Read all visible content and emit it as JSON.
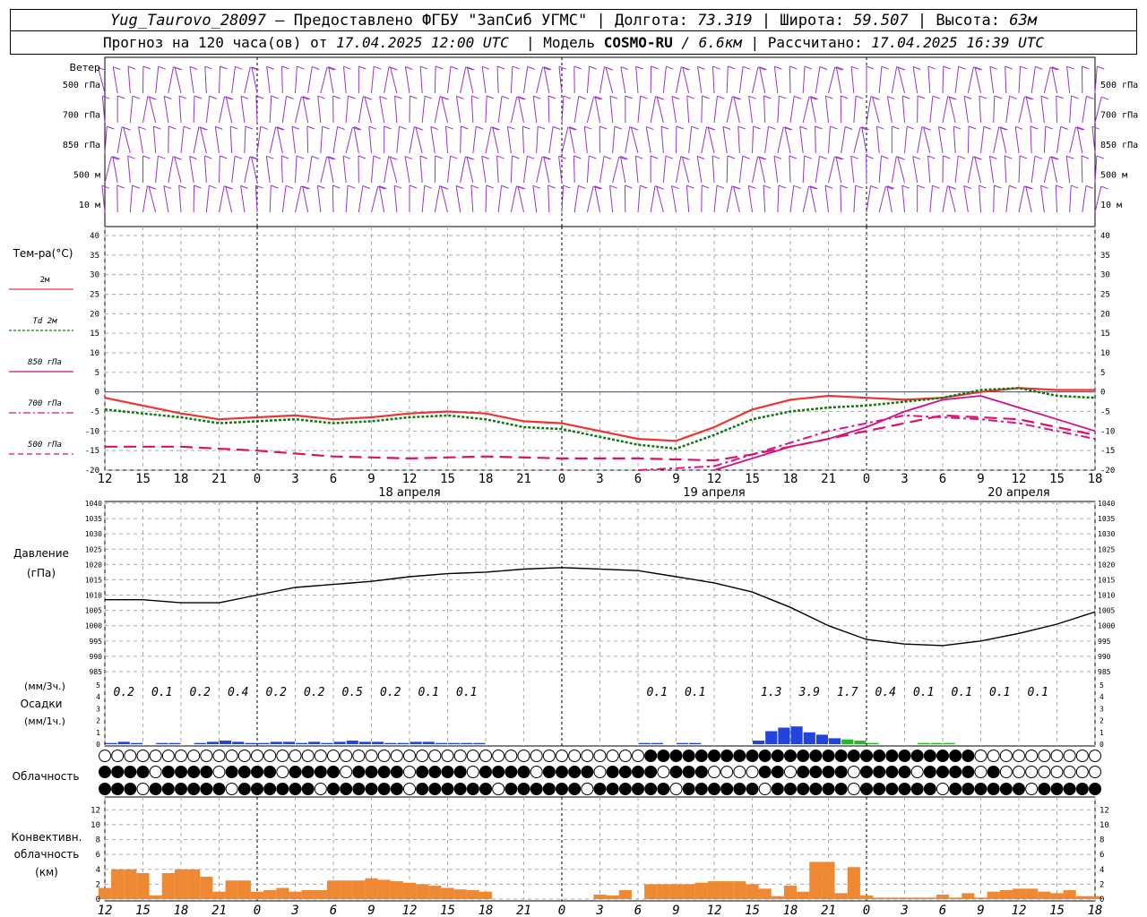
{
  "header": {
    "station": "Yug_Taurovo_28097",
    "provider": "– Предоставлено ФГБУ \"ЗапСиб УГМС\"",
    "lon_label": "| Долгота:",
    "lon_value": "73.319",
    "lat_label": "| Широта:",
    "lat_value": "59.507",
    "alt_label": "| Высота:",
    "alt_value": "63м",
    "forecast_label": "Прогноз на 120 часа(ов) от",
    "forecast_start": "17.04.2025 12:00 UTC",
    "model_label": "| Модель",
    "model_name": "COSMO-RU",
    "model_res": "/ 6.6км",
    "calc_label": "| Рассчитано:",
    "calc_time": "17.04.2025 16:39 UTC"
  },
  "colors": {
    "wind": "#9933cc",
    "t2m": "#ee3333",
    "td2m": "#117711",
    "t850": "#cc1188",
    "t700": "#dd1188",
    "t500": "#dd1166",
    "pressure": "#000000",
    "precip_rain": "#2244dd",
    "precip_mixed": "#22bb22",
    "convective": "#ee8833",
    "zero_line": "#3344cc"
  },
  "wind_panel": {
    "title": "Ветер",
    "levels": [
      "500 гПа",
      "700 гПа",
      "850 гПа",
      "500 м",
      "10 м"
    ]
  },
  "time_axis": {
    "hour_labels": [
      "12",
      "15",
      "18",
      "21",
      "0",
      "3",
      "6",
      "9",
      "12",
      "15",
      "18",
      "21",
      "0",
      "3",
      "6",
      "9",
      "12",
      "15",
      "18",
      "21",
      "0",
      "3",
      "6",
      "9",
      "12",
      "15",
      "18"
    ],
    "date_labels": [
      "18 апреля",
      "19 апреля",
      "20 апреля"
    ]
  },
  "temp_panel": {
    "title": "Тем-ра(°C)",
    "legend": [
      {
        "key": "2м",
        "label": "2м",
        "prefix": ""
      },
      {
        "key": "td",
        "label": "2м",
        "prefix": "Td"
      },
      {
        "key": "850",
        "label": "гПа",
        "prefix": "850"
      },
      {
        "key": "700",
        "label": "гПа",
        "prefix": "700"
      },
      {
        "key": "500",
        "label": "гПа",
        "prefix": "500"
      }
    ],
    "y_ticks": [
      "40",
      "35",
      "30",
      "25",
      "20",
      "15",
      "10",
      "5",
      "0",
      "-5",
      "-10",
      "-15",
      "-20"
    ]
  },
  "pressure_panel": {
    "title_1": "Давление",
    "title_2": "(гПа)",
    "y_ticks": [
      "1040",
      "1035",
      "1030",
      "1025",
      "1020",
      "1015",
      "1010",
      "1005",
      "1000",
      "995",
      "990",
      "985"
    ]
  },
  "precip_panel": {
    "title_1": "(мм/3ч.)",
    "title_2": "Осадки",
    "title_3": "(мм/1ч.)",
    "y_ticks": [
      "5",
      "4",
      "3",
      "2",
      "1",
      "0"
    ],
    "totals_3h": [
      {
        "t": 1.5,
        "v": "0.2"
      },
      {
        "t": 4.5,
        "v": "0.1"
      },
      {
        "t": 7.5,
        "v": "0.2"
      },
      {
        "t": 10.5,
        "v": "0.4"
      },
      {
        "t": 13.5,
        "v": "0.2"
      },
      {
        "t": 16.5,
        "v": "0.2"
      },
      {
        "t": 19.5,
        "v": "0.5"
      },
      {
        "t": 22.5,
        "v": "0.2"
      },
      {
        "t": 25.5,
        "v": "0.1"
      },
      {
        "t": 28.5,
        "v": "0.1"
      },
      {
        "t": 43.5,
        "v": "0.1"
      },
      {
        "t": 46.5,
        "v": "0.1"
      },
      {
        "t": 52.5,
        "v": "1.3"
      },
      {
        "t": 55.5,
        "v": "3.9"
      },
      {
        "t": 58.5,
        "v": "1.7"
      },
      {
        "t": 61.5,
        "v": "0.4"
      },
      {
        "t": 64.5,
        "v": "0.1"
      },
      {
        "t": 67.5,
        "v": "0.1"
      },
      {
        "t": 70.5,
        "v": "0.1"
      },
      {
        "t": 73.5,
        "v": "0.1"
      }
    ]
  },
  "cloud_panel": {
    "title": "Облачность"
  },
  "conv_panel": {
    "title_1": "Конвективн.",
    "title_2": "облачность",
    "title_3": "(км)",
    "y_ticks": [
      "12",
      "10",
      "8",
      "6",
      "4",
      "2",
      "0"
    ]
  },
  "chart_data": [
    {
      "type": "line",
      "title": "Тем-ра(°C)",
      "x_unit": "hours from 17.04.2025 12:00 UTC",
      "ylim": [
        -20,
        40
      ],
      "series": [
        {
          "name": "2м",
          "x": [
            0,
            3,
            6,
            9,
            12,
            15,
            18,
            21,
            24,
            27,
            30,
            33,
            36,
            42,
            45,
            48,
            51,
            54,
            57,
            60,
            63,
            66,
            69,
            72,
            75,
            78
          ],
          "values": [
            -1.5,
            -3.5,
            -5.5,
            -7,
            -6.5,
            -6,
            -7,
            -6.5,
            -5.5,
            -5,
            -5.5,
            -7.5,
            -8,
            -12,
            -12.5,
            -9,
            -4.5,
            -2,
            -1,
            -1.5,
            -2,
            -1.5,
            0,
            1,
            0.5,
            0.5
          ]
        },
        {
          "name": "Td 2м",
          "x": [
            0,
            3,
            6,
            9,
            12,
            15,
            18,
            21,
            24,
            27,
            30,
            33,
            36,
            42,
            45,
            48,
            51,
            54,
            57,
            60,
            63,
            66,
            69,
            72,
            75,
            78
          ],
          "values": [
            -4.5,
            -5.5,
            -6.5,
            -8,
            -7.5,
            -7,
            -8,
            -7.5,
            -6.5,
            -6,
            -7,
            -9,
            -9.5,
            -13.5,
            -14.5,
            -11,
            -7,
            -5,
            -4,
            -3.5,
            -2.5,
            -1.5,
            0.5,
            1,
            -1,
            -1.5
          ]
        },
        {
          "name": "850 гПа",
          "x": [
            48,
            51,
            54,
            57,
            60,
            63,
            66,
            69,
            72,
            75,
            78
          ],
          "values": [
            -20,
            -17,
            -14,
            -12,
            -9,
            -5,
            -2,
            -1,
            -4,
            -7,
            -10
          ]
        },
        {
          "name": "700 гПа",
          "x": [
            42,
            48,
            51,
            54,
            57,
            60,
            63,
            66,
            69,
            72,
            75,
            78
          ],
          "values": [
            -20,
            -19,
            -16,
            -13,
            -10,
            -8,
            -6,
            -6.5,
            -7,
            -8,
            -10,
            -12
          ]
        },
        {
          "name": "500 гПа",
          "x": [
            0,
            6,
            12,
            18,
            24,
            30,
            36,
            42,
            48,
            51,
            54,
            57,
            60,
            63,
            66,
            69,
            72,
            75,
            78
          ],
          "values": [
            -14,
            -14,
            -15,
            -16.5,
            -17,
            -16.5,
            -17,
            -17,
            -17.5,
            -16,
            -14,
            -12,
            -10,
            -8,
            -6,
            -6.5,
            -7,
            -9,
            -11
          ]
        }
      ]
    },
    {
      "type": "line",
      "title": "Давление (гПа)",
      "ylim": [
        985,
        1040
      ],
      "series": [
        {
          "name": "Давление",
          "x": [
            0,
            3,
            6,
            9,
            12,
            15,
            18,
            21,
            24,
            27,
            30,
            33,
            36,
            42,
            45,
            48,
            51,
            54,
            57,
            60,
            63,
            66,
            69,
            72,
            75,
            78
          ],
          "values": [
            1008.5,
            1008.5,
            1007.5,
            1007.5,
            1010,
            1012.5,
            1013.5,
            1014.5,
            1016,
            1017,
            1017.5,
            1018.5,
            1019,
            1018,
            1016,
            1014,
            1011,
            1006,
            1000,
            995.5,
            994,
            993.5,
            995,
            997.5,
            1000.5,
            1004.5
          ]
        }
      ]
    },
    {
      "type": "bar",
      "title": "Осадки (мм/1ч.)",
      "ylim": [
        0,
        5
      ],
      "series": [
        {
          "name": "rain",
          "x": [
            1,
            2,
            3,
            5,
            6,
            8,
            9,
            10,
            11,
            12,
            13,
            14,
            15,
            16,
            17,
            18,
            19,
            20,
            21,
            22,
            23,
            24,
            25,
            26,
            27,
            28,
            29,
            30,
            43,
            44,
            46,
            47,
            52,
            53,
            54,
            55,
            56,
            57,
            58
          ],
          "values": [
            0.1,
            0.2,
            0.1,
            0.1,
            0.1,
            0.1,
            0.2,
            0.3,
            0.2,
            0.1,
            0.1,
            0.2,
            0.2,
            0.1,
            0.2,
            0.1,
            0.2,
            0.3,
            0.2,
            0.2,
            0.1,
            0.1,
            0.2,
            0.2,
            0.1,
            0.1,
            0.1,
            0.1,
            0.1,
            0.1,
            0.1,
            0.1,
            0.3,
            1.1,
            1.4,
            1.5,
            1.0,
            0.8,
            0.5
          ]
        },
        {
          "name": "mixed",
          "x": [
            59,
            60,
            61,
            65,
            66,
            67
          ],
          "values": [
            0.4,
            0.3,
            0.1,
            0.1,
            0.1,
            0.1
          ]
        }
      ]
    },
    {
      "type": "bar",
      "title": "Конвективн. облачность (км)",
      "ylim": [
        0,
        13
      ],
      "series": [
        {
          "name": "convective",
          "x": [
            0,
            1,
            2,
            3,
            4,
            5,
            6,
            7,
            8,
            9,
            10,
            11,
            12,
            13,
            14,
            15,
            16,
            17,
            18,
            19,
            20,
            21,
            22,
            23,
            24,
            25,
            26,
            27,
            28,
            29,
            30,
            39,
            40,
            41,
            43,
            44,
            45,
            46,
            47,
            48,
            49,
            50,
            51,
            52,
            53,
            54,
            55,
            56,
            57,
            58,
            59,
            60,
            61,
            62,
            63,
            64,
            65,
            66,
            67,
            68,
            69,
            70,
            71,
            72,
            73,
            74,
            75,
            76,
            77,
            78
          ],
          "values": [
            1.5,
            4,
            4,
            3.5,
            0.5,
            3.5,
            4,
            4,
            3,
            1,
            2.5,
            2.5,
            1,
            1.2,
            1.5,
            1,
            1.2,
            1.2,
            2.5,
            2.5,
            2.5,
            2.8,
            2.6,
            2.4,
            2.2,
            2,
            1.8,
            1.5,
            1.3,
            1.2,
            1,
            0.6,
            0.5,
            1.2,
            2,
            2,
            2,
            2,
            2.2,
            2.4,
            2.4,
            2.4,
            2,
            1.4,
            0.4,
            1.8,
            1,
            5,
            5,
            0.8,
            4.3,
            0.5,
            0.2,
            0.2,
            0.2,
            0.2,
            0.2,
            0.6,
            0.2,
            0.8,
            0.2,
            1,
            1.2,
            1.4,
            1.4,
            1,
            0.8,
            1.2,
            0.4,
            0.4
          ]
        }
      ]
    }
  ]
}
